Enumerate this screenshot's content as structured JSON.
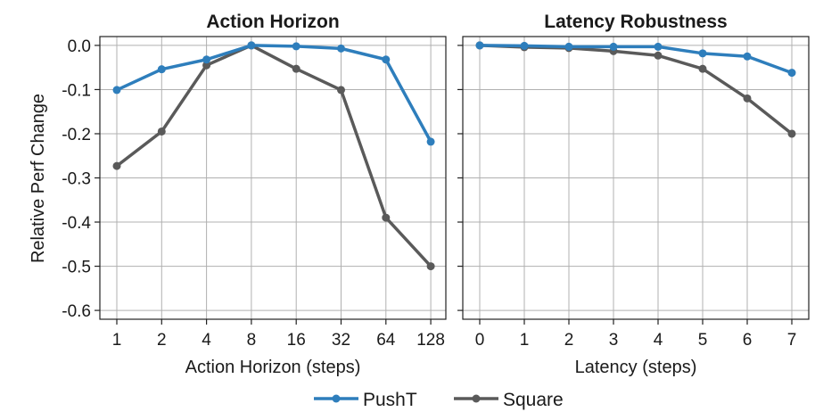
{
  "chart_data": [
    {
      "type": "line",
      "title": "Action Horizon",
      "xlabel": "Action Horizon (steps)",
      "ylabel": "Relative Perf Change",
      "categories": [
        "1",
        "2",
        "4",
        "8",
        "16",
        "32",
        "64",
        "128"
      ],
      "ylim": [
        -0.62,
        0.02
      ],
      "yticks": [
        "0.0",
        "-0.1",
        "-0.2",
        "-0.3",
        "-0.4",
        "-0.5",
        "-0.6"
      ],
      "grid": true,
      "series": [
        {
          "name": "PushT",
          "color": "#2e7ebc",
          "values": [
            -0.101,
            -0.054,
            -0.032,
            0.0,
            -0.002,
            -0.007,
            -0.032,
            -0.218
          ]
        },
        {
          "name": "Square",
          "color": "#5a5a5a",
          "values": [
            -0.273,
            -0.195,
            -0.045,
            0.0,
            -0.053,
            -0.101,
            -0.39,
            -0.5
          ]
        }
      ]
    },
    {
      "type": "line",
      "title": "Latency Robustness",
      "xlabel": "Latency (steps)",
      "ylabel": "",
      "categories": [
        "0",
        "1",
        "2",
        "3",
        "4",
        "5",
        "6",
        "7"
      ],
      "ylim": [
        -0.62,
        0.02
      ],
      "grid": true,
      "series": [
        {
          "name": "PushT",
          "color": "#2e7ebc",
          "values": [
            0.0,
            -0.001,
            -0.003,
            -0.003,
            -0.003,
            -0.018,
            -0.025,
            -0.062
          ]
        },
        {
          "name": "Square",
          "color": "#5a5a5a",
          "values": [
            0.0,
            -0.004,
            -0.006,
            -0.013,
            -0.023,
            -0.053,
            -0.12,
            -0.2
          ]
        }
      ]
    }
  ],
  "legend": {
    "placement": "bottom-center",
    "items": [
      {
        "label": "PushT",
        "color": "#2e7ebc"
      },
      {
        "label": "Square",
        "color": "#5a5a5a"
      }
    ]
  }
}
